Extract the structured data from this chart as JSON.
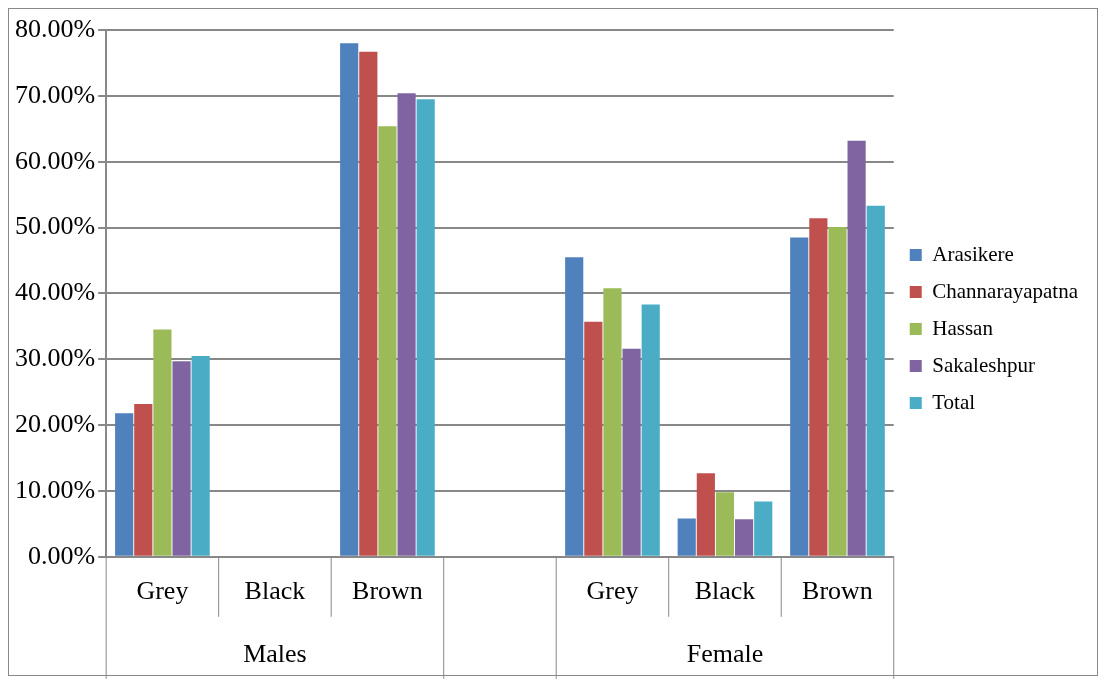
{
  "chart_data": {
    "type": "bar",
    "categories": [
      "Grey",
      "Black",
      "Brown",
      null,
      "Grey",
      "Black",
      "Brown"
    ],
    "annotations": [
      "Males",
      "Female"
    ],
    "series": [
      {
        "name": "Arasikere",
        "color": "#4f81bd",
        "values": [
          21.8,
          0,
          78.0,
          null,
          45.5,
          5.8,
          48.5
        ]
      },
      {
        "name": "Channarayapatna",
        "color": "#c0504d",
        "values": [
          23.2,
          0,
          76.7,
          null,
          35.7,
          12.7,
          51.4
        ]
      },
      {
        "name": "Hassan",
        "color": "#9bbb59",
        "values": [
          34.5,
          0,
          65.4,
          null,
          40.8,
          9.8,
          50.1
        ]
      },
      {
        "name": "Sakaleshpur",
        "color": "#8064a2",
        "values": [
          29.7,
          0,
          70.4,
          null,
          31.6,
          5.7,
          63.2
        ]
      },
      {
        "name": "Total",
        "color": "#4bacc6",
        "values": [
          30.5,
          0,
          69.5,
          null,
          38.3,
          8.4,
          53.3
        ]
      }
    ],
    "ylim": [
      0,
      80
    ],
    "yticks": [
      {
        "value": 0,
        "label": "0.00%"
      },
      {
        "value": 10,
        "label": "10.00%"
      },
      {
        "value": 20,
        "label": "20.00%"
      },
      {
        "value": 30,
        "label": "30.00%"
      },
      {
        "value": 40,
        "label": "40.00%"
      },
      {
        "value": 50,
        "label": "50.00%"
      },
      {
        "value": 60,
        "label": "60.00%"
      },
      {
        "value": 70,
        "label": "70.00%"
      },
      {
        "value": 80,
        "label": "80.00%"
      }
    ],
    "grid": "y",
    "legend": "right"
  }
}
